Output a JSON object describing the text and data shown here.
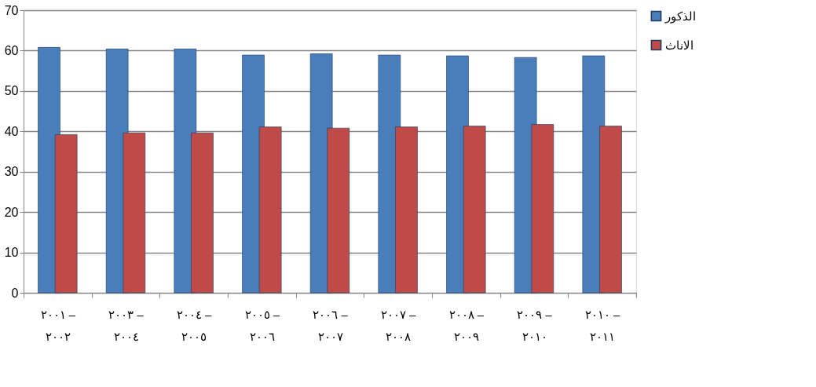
{
  "chart_data": {
    "type": "bar",
    "categories": [
      "٢٠٠١ – ٢٠٠٢",
      "٢٠٠٣ – ٢٠٠٤",
      "٢٠٠٤ – ٢٠٠٥",
      "٢٠٠٥ – ٢٠٠٦",
      "٢٠٠٦ – ٢٠٠٧",
      "٢٠٠٧ – ٢٠٠٨",
      "٢٠٠٨ – ٢٠٠٩",
      "٢٠٠٩ – ٢٠١٠",
      "٢٠١٠ – ٢٠١١"
    ],
    "series": [
      {
        "name": "الذكور",
        "color": "#4a7ebb",
        "values": [
          60.8,
          60.4,
          60.4,
          58.9,
          59.2,
          58.9,
          58.7,
          58.3,
          58.7
        ]
      },
      {
        "name": "الاناث",
        "color": "#be4b48",
        "values": [
          39.2,
          39.6,
          39.6,
          41.1,
          40.8,
          41.1,
          41.3,
          41.7,
          41.3
        ]
      }
    ],
    "ylim": [
      0,
      70
    ],
    "yticks": [
      0,
      10,
      20,
      30,
      40,
      50,
      60,
      70
    ],
    "grid": "y",
    "legend": "right"
  }
}
